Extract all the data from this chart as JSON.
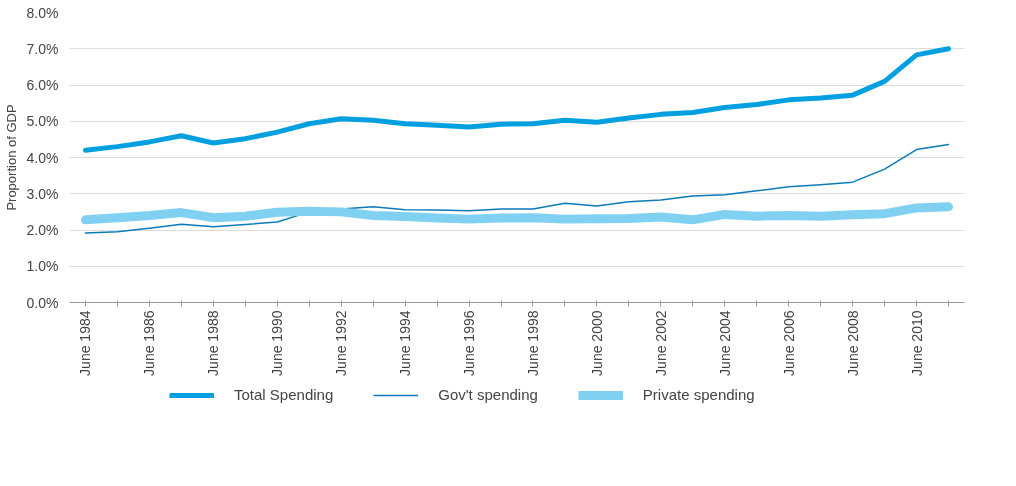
{
  "chart_data": {
    "type": "line",
    "ylabel": "Proportion of GDP",
    "categories": [
      "June 1984",
      null,
      "June 1986",
      null,
      "June 1988",
      null,
      "June 1990",
      null,
      "June 1992",
      null,
      "June 1994",
      null,
      "June 1996",
      null,
      "June 1998",
      null,
      "June 2000",
      null,
      "June 2002",
      null,
      "June 2004",
      null,
      "June 2006",
      null,
      "June 2008",
      null,
      "June 2010",
      null
    ],
    "series": [
      {
        "name": "Total Spending",
        "color": "#00a0e0",
        "values": [
          4.2,
          4.3,
          4.43,
          4.6,
          4.4,
          4.52,
          4.7,
          4.93,
          5.07,
          5.03,
          4.93,
          4.89,
          4.84,
          4.92,
          4.93,
          5.03,
          4.97,
          5.09,
          5.19,
          5.24,
          5.38,
          5.46,
          5.59,
          5.64,
          5.72,
          6.1,
          6.83,
          7.0
        ]
      },
      {
        "name": "Gov't spending",
        "color": "#0a7ab8",
        "values": [
          1.92,
          1.95,
          2.05,
          2.16,
          2.09,
          2.15,
          2.22,
          2.5,
          2.58,
          2.64,
          2.56,
          2.55,
          2.53,
          2.58,
          2.58,
          2.74,
          2.66,
          2.78,
          2.83,
          2.94,
          2.97,
          3.08,
          3.19,
          3.25,
          3.32,
          3.68,
          4.22,
          4.36
        ]
      },
      {
        "name": "Private spending",
        "color": "#80d0f2",
        "values": [
          2.28,
          2.34,
          2.4,
          2.48,
          2.34,
          2.38,
          2.49,
          2.52,
          2.5,
          2.4,
          2.37,
          2.33,
          2.3,
          2.33,
          2.34,
          2.3,
          2.31,
          2.32,
          2.36,
          2.28,
          2.43,
          2.38,
          2.4,
          2.38,
          2.42,
          2.45,
          2.61,
          2.64
        ]
      }
    ],
    "ylim": [
      0,
      8
    ],
    "yticks": [
      {
        "value": 0,
        "label": "0.0%"
      },
      {
        "value": 1,
        "label": "1.0%"
      },
      {
        "value": 2,
        "label": "2.0%"
      },
      {
        "value": 3,
        "label": "3.0%"
      },
      {
        "value": 4,
        "label": "4.0%"
      },
      {
        "value": 5,
        "label": "5.0%"
      },
      {
        "value": 6,
        "label": "6.0%"
      },
      {
        "value": 7,
        "label": "7.0%"
      },
      {
        "value": 8,
        "label": "8.0%"
      }
    ],
    "grid": "y",
    "legend": "bottom",
    "marker": "none",
    "line_style": "solid"
  }
}
